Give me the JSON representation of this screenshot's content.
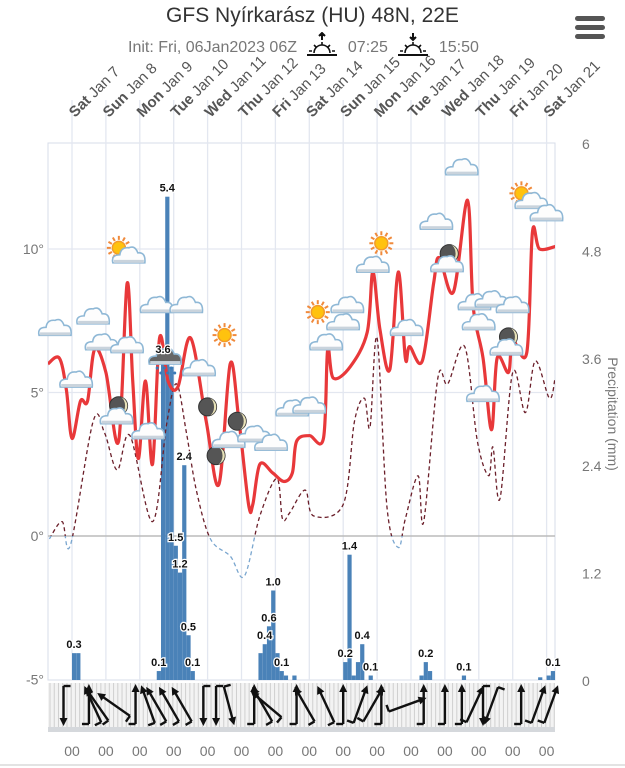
{
  "header": {
    "title": "GFS Nyírkarász (HU) 48N, 22E",
    "init": "Init: Fri, 06Jan2023 06Z",
    "sunrise": "07:25",
    "sunset": "15:50",
    "sunrise_icon": "sunrise-icon",
    "sunset_icon": "sunset-icon",
    "menu_icon": "hamburger-menu-icon"
  },
  "chart_data": {
    "type": "line",
    "title": "",
    "x_type": "datetime",
    "x_range": [
      "2023-01-06 07",
      "2023-01-21 07"
    ],
    "day_labels": [
      {
        "date": "2023-01-07",
        "dow": "Sat",
        "label": "Jan 7"
      },
      {
        "date": "2023-01-08",
        "dow": "Sun",
        "label": "Jan 8"
      },
      {
        "date": "2023-01-09",
        "dow": "Mon",
        "label": "Jan 9"
      },
      {
        "date": "2023-01-10",
        "dow": "Tue",
        "label": "Jan 10"
      },
      {
        "date": "2023-01-11",
        "dow": "Wed",
        "label": "Jan 11"
      },
      {
        "date": "2023-01-12",
        "dow": "Thu",
        "label": "Jan 12"
      },
      {
        "date": "2023-01-13",
        "dow": "Fri",
        "label": "Jan 13"
      },
      {
        "date": "2023-01-14",
        "dow": "Sat",
        "label": "Jan 14"
      },
      {
        "date": "2023-01-15",
        "dow": "Sun",
        "label": "Jan 15"
      },
      {
        "date": "2023-01-16",
        "dow": "Mon",
        "label": "Jan 16"
      },
      {
        "date": "2023-01-17",
        "dow": "Tue",
        "label": "Jan 17"
      },
      {
        "date": "2023-01-18",
        "dow": "Wed",
        "label": "Jan 18"
      },
      {
        "date": "2023-01-19",
        "dow": "Thu",
        "label": "Jan 19"
      },
      {
        "date": "2023-01-20",
        "dow": "Fri",
        "label": "Jan 20"
      },
      {
        "date": "2023-01-21",
        "dow": "Sat",
        "label": "Jan 21"
      }
    ],
    "hour_label": "00",
    "y_left": {
      "label": "",
      "range": [
        -5,
        13.7
      ],
      "ticks": [
        10,
        5,
        0,
        -5
      ],
      "tick_labels": [
        "10°",
        "5°",
        "0°",
        "-5°"
      ]
    },
    "y_right": {
      "label": "Precipitation (mm)",
      "range": [
        0,
        6
      ],
      "ticks": [
        6,
        4.8,
        3.6,
        2.4,
        1.2,
        0
      ],
      "tick_labels": [
        "6",
        "4.8",
        "3.6",
        "2.4",
        "1.2",
        "0"
      ]
    },
    "grid": true,
    "colors": {
      "temperature": "#e8383a",
      "dewpoint_above_zero": "#6b1f2a",
      "dewpoint_below_zero": "#7aa6cf",
      "precipitation": "#4a82b8",
      "grid": "#e3e7f0",
      "zero_line": "#bbbbbb"
    },
    "temperature": [
      [
        "2023-01-06 07",
        6.0
      ],
      [
        "2023-01-06 15",
        6.2
      ],
      [
        "2023-01-06 20",
        5.1
      ],
      [
        "2023-01-07 00",
        3.4
      ],
      [
        "2023-01-07 06",
        4.7
      ],
      [
        "2023-01-07 11",
        4.7
      ],
      [
        "2023-01-07 16",
        6.5
      ],
      [
        "2023-01-08 00",
        5.7
      ],
      [
        "2023-01-08 09",
        3.3
      ],
      [
        "2023-01-08 15",
        8.8
      ],
      [
        "2023-01-08 19",
        5.4
      ],
      [
        "2023-01-08 23",
        2.7
      ],
      [
        "2023-01-09 04",
        5.4
      ],
      [
        "2023-01-09 09",
        2.5
      ],
      [
        "2023-01-09 14",
        6.9
      ],
      [
        "2023-01-09 20",
        5.4
      ],
      [
        "2023-01-10 03",
        5.2
      ],
      [
        "2023-01-10 12",
        6.9
      ],
      [
        "2023-01-10 23",
        4.0
      ],
      [
        "2023-01-11 08",
        1.8
      ],
      [
        "2023-01-11 16",
        6.0
      ],
      [
        "2023-01-11 22",
        4.1
      ],
      [
        "2023-01-12 05",
        1.1
      ],
      [
        "2023-01-12 08",
        1.1
      ],
      [
        "2023-01-12 13",
        2.5
      ],
      [
        "2023-01-12 22",
        2.2
      ],
      [
        "2023-01-13 06",
        1.9
      ],
      [
        "2023-01-13 12",
        2.2
      ],
      [
        "2023-01-13 15",
        3.3
      ],
      [
        "2023-01-14 00",
        3.5
      ],
      [
        "2023-01-14 10",
        3.4
      ],
      [
        "2023-01-14 13",
        6.5
      ],
      [
        "2023-01-14 17",
        5.5
      ],
      [
        "2023-01-15 05",
        5.9
      ],
      [
        "2023-01-15 17",
        7.1
      ],
      [
        "2023-01-15 21",
        9.2
      ],
      [
        "2023-01-16 02",
        7.2
      ],
      [
        "2023-01-16 09",
        5.8
      ],
      [
        "2023-01-16 15",
        9.2
      ],
      [
        "2023-01-16 20",
        6.2
      ],
      [
        "2023-01-16 23",
        6.6
      ],
      [
        "2023-01-17 08",
        6.1
      ],
      [
        "2023-01-17 16",
        8.8
      ],
      [
        "2023-01-17 20",
        9.7
      ],
      [
        "2023-01-18 06",
        8.5
      ],
      [
        "2023-01-18 16",
        11.7
      ],
      [
        "2023-01-18 20",
        8.0
      ],
      [
        "2023-01-19 03",
        6.2
      ],
      [
        "2023-01-19 09",
        3.7
      ],
      [
        "2023-01-19 13",
        6.2
      ],
      [
        "2023-01-19 21",
        5.7
      ],
      [
        "2023-01-20 00",
        6.8
      ],
      [
        "2023-01-20 10",
        6.4
      ],
      [
        "2023-01-20 14",
        10.6
      ],
      [
        "2023-01-20 19",
        10.0
      ],
      [
        "2023-01-21 07",
        10.1
      ]
    ],
    "dewpoint": [
      [
        "2023-01-06 08",
        -0.1
      ],
      [
        "2023-01-06 17",
        0.5
      ],
      [
        "2023-01-06 23",
        -0.3
      ],
      [
        "2023-01-07 15",
        4.0
      ],
      [
        "2023-01-07 23",
        3.6
      ],
      [
        "2023-01-08 08",
        2.3
      ],
      [
        "2023-01-08 17",
        3.5
      ],
      [
        "2023-01-09 09",
        0.5
      ],
      [
        "2023-01-09 19",
        3.9
      ],
      [
        "2023-01-10 02",
        5.3
      ],
      [
        "2023-01-10 09",
        3.6
      ],
      [
        "2023-01-10 16",
        1.6
      ],
      [
        "2023-01-11 02",
        -0.1
      ],
      [
        "2023-01-11 16",
        -0.7
      ],
      [
        "2023-01-12 02",
        -1.4
      ],
      [
        "2023-01-12 13",
        0.7
      ],
      [
        "2023-01-13 01",
        2.0
      ],
      [
        "2023-01-13 05",
        0.6
      ],
      [
        "2023-01-13 10",
        0.8
      ],
      [
        "2023-01-13 21",
        1.6
      ],
      [
        "2023-01-14 03",
        0.7
      ],
      [
        "2023-01-15 00",
        1.1
      ],
      [
        "2023-01-15 08",
        4.0
      ],
      [
        "2023-01-15 15",
        4.8
      ],
      [
        "2023-01-15 19",
        3.8
      ],
      [
        "2023-01-16 00",
        6.9
      ],
      [
        "2023-01-16 07",
        1.0
      ],
      [
        "2023-01-16 15",
        -0.4
      ],
      [
        "2023-01-16 20",
        0.6
      ],
      [
        "2023-01-17 05",
        2.1
      ],
      [
        "2023-01-17 09",
        0.5
      ],
      [
        "2023-01-17 19",
        5.5
      ],
      [
        "2023-01-18 02",
        5.3
      ],
      [
        "2023-01-18 14",
        6.6
      ],
      [
        "2023-01-18 23",
        3.3
      ],
      [
        "2023-01-19 07",
        2.1
      ],
      [
        "2023-01-19 10",
        3.1
      ],
      [
        "2023-01-19 15",
        1.3
      ],
      [
        "2023-01-20 00",
        5.7
      ],
      [
        "2023-01-20 09",
        4.3
      ],
      [
        "2023-01-20 16",
        6.1
      ],
      [
        "2023-01-21 02",
        4.8
      ],
      [
        "2023-01-21 06",
        5.5
      ]
    ],
    "precipitation_3h": [
      {
        "t": "2023-01-07 00",
        "v": 0.3,
        "label": "0.3"
      },
      {
        "t": "2023-01-07 03",
        "v": 0.3
      },
      {
        "t": "2023-01-09 12",
        "v": 0.1,
        "label": "0.1"
      },
      {
        "t": "2023-01-09 15",
        "v": 3.6,
        "label": "3.6"
      },
      {
        "t": "2023-01-09 18",
        "v": 5.4,
        "label": "5.4"
      },
      {
        "t": "2023-01-09 21",
        "v": 3.5
      },
      {
        "t": "2023-01-10 00",
        "v": 1.5,
        "label": "1.5"
      },
      {
        "t": "2023-01-10 03",
        "v": 1.2,
        "label": "1.2"
      },
      {
        "t": "2023-01-10 06",
        "v": 2.4,
        "label": "2.4"
      },
      {
        "t": "2023-01-10 09",
        "v": 0.5,
        "label": "0.5"
      },
      {
        "t": "2023-01-10 12",
        "v": 0.1,
        "label": "0.1"
      },
      {
        "t": "2023-01-12 12",
        "v": 0.3
      },
      {
        "t": "2023-01-12 15",
        "v": 0.4,
        "label": "0.4"
      },
      {
        "t": "2023-01-12 18",
        "v": 0.6,
        "label": "0.6"
      },
      {
        "t": "2023-01-12 21",
        "v": 1.0,
        "label": "1.0"
      },
      {
        "t": "2023-01-13 00",
        "v": 0.3
      },
      {
        "t": "2023-01-13 03",
        "v": 0.1,
        "label": "0.1"
      },
      {
        "t": "2023-01-13 06",
        "v": 0.05
      },
      {
        "t": "2023-01-13 12",
        "v": 0.05
      },
      {
        "t": "2023-01-15 00",
        "v": 0.2,
        "label": "0.2"
      },
      {
        "t": "2023-01-15 03",
        "v": 1.4,
        "label": "1.4"
      },
      {
        "t": "2023-01-15 06",
        "v": 0.05
      },
      {
        "t": "2023-01-15 09",
        "v": 0.2
      },
      {
        "t": "2023-01-15 12",
        "v": 0.4,
        "label": "0.4"
      },
      {
        "t": "2023-01-15 18",
        "v": 0.05,
        "label": "0.1"
      },
      {
        "t": "2023-01-17 06",
        "v": 0.05
      },
      {
        "t": "2023-01-17 09",
        "v": 0.2,
        "label": "0.2"
      },
      {
        "t": "2023-01-17 12",
        "v": 0.1
      },
      {
        "t": "2023-01-18 12",
        "v": 0.05,
        "label": "0.1"
      },
      {
        "t": "2023-01-20 18",
        "v": 0.03
      },
      {
        "t": "2023-01-21 00",
        "v": 0.05
      },
      {
        "t": "2023-01-21 03",
        "v": 0.1,
        "label": "0.1"
      }
    ],
    "weather_icons": [
      [
        "2023-01-06 12",
        7.2,
        "cloud"
      ],
      [
        "2023-01-07 03",
        5.4,
        "cloud"
      ],
      [
        "2023-01-07 15",
        7.6,
        "cloud"
      ],
      [
        "2023-01-07 21",
        6.7,
        "cloud"
      ],
      [
        "2023-01-08 09",
        4.4,
        "moon-cloud"
      ],
      [
        "2023-01-08 12",
        9.9,
        "sun-cloud"
      ],
      [
        "2023-01-08 15",
        6.6,
        "cloud"
      ],
      [
        "2023-01-09 06",
        3.6,
        "cloud"
      ],
      [
        "2023-01-09 12",
        8.0,
        "cloud"
      ],
      [
        "2023-01-09 18",
        6.2,
        "rain-cloud"
      ],
      [
        "2023-01-10 09",
        8.0,
        "cloud"
      ],
      [
        "2023-01-10 18",
        5.8,
        "cloud"
      ],
      [
        "2023-01-11 00",
        4.5,
        "moon"
      ],
      [
        "2023-01-11 06",
        2.8,
        "moon"
      ],
      [
        "2023-01-11 12",
        7.0,
        "sun"
      ],
      [
        "2023-01-11 21",
        4.0,
        "moon"
      ],
      [
        "2023-01-11 15",
        3.3,
        "cloud"
      ],
      [
        "2023-01-12 09",
        3.5,
        "cloud"
      ],
      [
        "2023-01-12 21",
        3.2,
        "cloud"
      ],
      [
        "2023-01-13 12",
        4.4,
        "cloud"
      ],
      [
        "2023-01-14 00",
        4.5,
        "cloud"
      ],
      [
        "2023-01-14 06",
        7.8,
        "sun"
      ],
      [
        "2023-01-14 12",
        6.7,
        "cloud"
      ],
      [
        "2023-01-15 00",
        7.4,
        "cloud"
      ],
      [
        "2023-01-15 03",
        8.0,
        "cloud"
      ],
      [
        "2023-01-15 21",
        9.4,
        "cloud"
      ],
      [
        "2023-01-16 03",
        10.2,
        "sun"
      ],
      [
        "2023-01-16 21",
        7.2,
        "cloud"
      ],
      [
        "2023-01-17 18",
        10.9,
        "cloud"
      ],
      [
        "2023-01-18 03",
        9.7,
        "moon-cloud"
      ],
      [
        "2023-01-18 12",
        12.8,
        "cloud"
      ],
      [
        "2023-01-18 21",
        8.1,
        "cloud"
      ],
      [
        "2023-01-19 00",
        7.4,
        "cloud"
      ],
      [
        "2023-01-19 03",
        4.9,
        "cloud"
      ],
      [
        "2023-01-19 09",
        8.2,
        "cloud"
      ],
      [
        "2023-01-19 21",
        6.8,
        "moon-cloud"
      ],
      [
        "2023-01-20 00",
        8.0,
        "cloud"
      ],
      [
        "2023-01-20 09",
        11.8,
        "sun-cloud"
      ],
      [
        "2023-01-21 00",
        11.2,
        "cloud"
      ]
    ],
    "wind_arrows_pointing_deg": [
      [
        "2023-01-06 18",
        180
      ],
      [
        "2023-01-07 12",
        0
      ],
      [
        "2023-01-07 15",
        -25
      ],
      [
        "2023-01-07 18",
        -35
      ],
      [
        "2023-01-08 06",
        -55
      ],
      [
        "2023-01-08 21",
        0
      ],
      [
        "2023-01-09 06",
        -20
      ],
      [
        "2023-01-09 12",
        -30
      ],
      [
        "2023-01-09 21",
        -30
      ],
      [
        "2023-01-10 06",
        -30
      ],
      [
        "2023-01-10 21",
        180
      ],
      [
        "2023-01-11 06",
        180
      ],
      [
        "2023-01-11 15",
        165
      ],
      [
        "2023-01-12 09",
        0
      ],
      [
        "2023-01-12 15",
        -30
      ],
      [
        "2023-01-12 18",
        -50
      ],
      [
        "2023-01-13 15",
        0
      ],
      [
        "2023-01-13 21",
        -30
      ],
      [
        "2023-01-14 12",
        -25
      ],
      [
        "2023-01-15 00",
        0
      ],
      [
        "2023-01-15 12",
        20
      ],
      [
        "2023-01-15 21",
        30
      ],
      [
        "2023-01-16 03",
        0
      ],
      [
        "2023-01-16 21",
        70
      ],
      [
        "2023-01-17 09",
        0
      ],
      [
        "2023-01-18 00",
        0
      ],
      [
        "2023-01-18 12",
        0
      ],
      [
        "2023-01-18 21",
        25
      ],
      [
        "2023-01-19 03",
        180
      ],
      [
        "2023-01-19 09",
        200
      ],
      [
        "2023-01-20 06",
        0
      ],
      [
        "2023-01-20 18",
        20
      ],
      [
        "2023-01-21 03",
        20
      ]
    ]
  }
}
